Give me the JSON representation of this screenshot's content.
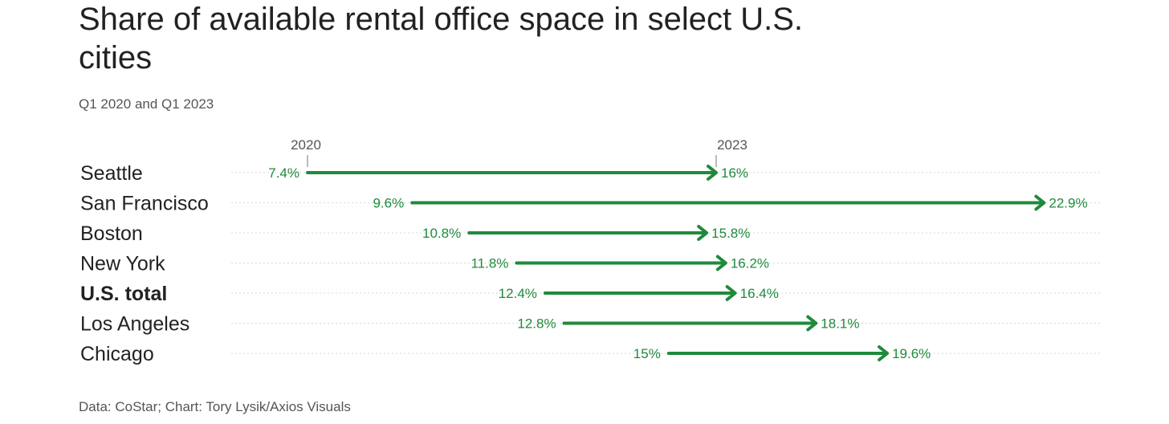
{
  "chart_data": {
    "type": "arrow-range",
    "title": "Share of available rental office space in select U.S. cities",
    "subtitle": "Q1 2020 and Q1 2023",
    "source": "Data: CoStar; Chart: Tory Lysik/Axios Visuals",
    "start_label": "2020",
    "end_label": "2023",
    "categories": [
      "Seattle",
      "San Francisco",
      "Boston",
      "New York",
      "U.S. total",
      "Los Angeles",
      "Chicago"
    ],
    "emphasized": [
      "U.S. total"
    ],
    "series": [
      {
        "name": "2020",
        "values": [
          7.4,
          9.6,
          10.8,
          11.8,
          12.4,
          12.8,
          15
        ]
      },
      {
        "name": "2023",
        "values": [
          16,
          22.9,
          15.8,
          16.2,
          16.4,
          18.1,
          19.6
        ]
      }
    ],
    "value_labels_start": [
      "7.4%",
      "9.6%",
      "10.8%",
      "11.8%",
      "12.4%",
      "12.8%",
      "15%"
    ],
    "value_labels_end": [
      "16%",
      "22.9%",
      "15.8%",
      "16.2%",
      "16.4%",
      "18.1%",
      "19.6%"
    ],
    "color": "#1f8a3b",
    "grid": true
  }
}
